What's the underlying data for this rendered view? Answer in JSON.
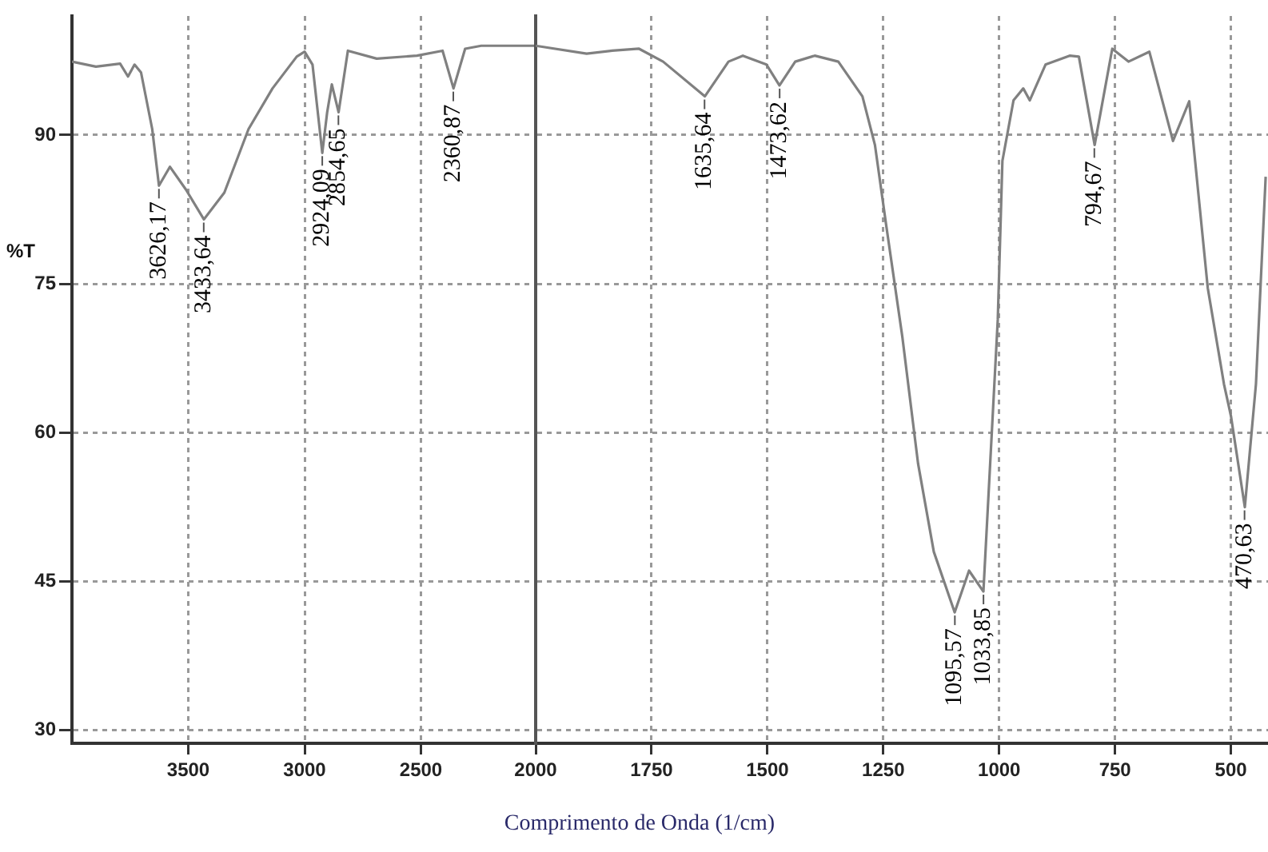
{
  "chart_data": [
    {
      "type": "line",
      "ylabel": "%T",
      "xlim": [
        4000,
        2000
      ],
      "xticks": [
        3500,
        3000,
        2500
      ],
      "ylim": [
        28.7,
        102
      ],
      "yticks": [
        30,
        45,
        60,
        75,
        90
      ],
      "grid": true,
      "marker": "none",
      "line_style": "solid",
      "series": [
        {
          "color": "#808080",
          "x": [
            4000,
            3897,
            3793,
            3759,
            3731,
            3703,
            3655,
            3626,
            3579,
            3510,
            3433,
            3345,
            3241,
            3138,
            3034,
            3000,
            2966,
            2924,
            2903,
            2883,
            2854,
            2814,
            2690,
            2517,
            2407,
            2360,
            2310,
            2241,
            2000
          ],
          "values": [
            97.4,
            96.9,
            97.2,
            95.9,
            97.1,
            96.3,
            90.6,
            84.9,
            86.8,
            84.5,
            81.5,
            84.2,
            90.6,
            94.7,
            97.9,
            98.4,
            97.1,
            88.2,
            92.3,
            95.1,
            92.3,
            98.5,
            97.7,
            98.0,
            98.5,
            94.7,
            98.7,
            99.0,
            99.0
          ]
        }
      ],
      "annotations": [
        {
          "text": "3626,17",
          "x": 3626.17,
          "y": 84.9
        },
        {
          "text": "3433,64",
          "x": 3433.64,
          "y": 81.5
        },
        {
          "text": "2924,09",
          "x": 2924.09,
          "y": 88.2
        },
        {
          "text": "2854,65",
          "x": 2854.65,
          "y": 92.3
        },
        {
          "text": "2360,87",
          "x": 2360.87,
          "y": 94.7
        }
      ]
    },
    {
      "type": "line",
      "xlabel": "Comprimento de Onda (1/cm)",
      "xlim": [
        2000,
        420
      ],
      "xticks": [
        2000,
        1750,
        1500,
        1250,
        1000,
        750,
        500
      ],
      "ylim": [
        28.7,
        102
      ],
      "yticks": [
        30,
        45,
        60,
        75,
        90
      ],
      "tick_labels": "x",
      "grid": true,
      "marker": "none",
      "line_style": "solid",
      "series": [
        {
          "color": "#808080",
          "x": [
            2000,
            1890,
            1835,
            1777,
            1725,
            1635,
            1584,
            1553,
            1502,
            1474,
            1440,
            1398,
            1347,
            1295,
            1268,
            1244,
            1209,
            1175,
            1141,
            1096,
            1065,
            1034,
            1003,
            993,
            969,
            948,
            934,
            900,
            848,
            828,
            794,
            756,
            721,
            676,
            625,
            590,
            550,
            515,
            500,
            470,
            446,
            425
          ],
          "values": [
            99.0,
            98.2,
            98.5,
            98.7,
            97.4,
            93.9,
            97.4,
            98.0,
            97.1,
            95.0,
            97.4,
            98.0,
            97.4,
            93.9,
            89.0,
            81.0,
            69.7,
            56.9,
            48.0,
            41.9,
            46.1,
            44.0,
            71.4,
            87.4,
            93.5,
            94.7,
            93.5,
            97.1,
            98.0,
            97.9,
            89.0,
            98.7,
            97.4,
            98.4,
            89.4,
            93.4,
            74.6,
            64.9,
            61.7,
            52.5,
            64.9,
            85.8
          ]
        }
      ],
      "annotations": [
        {
          "text": "1635,64",
          "x": 1635.64,
          "y": 93.9
        },
        {
          "text": "1473,62",
          "x": 1473.62,
          "y": 95.0
        },
        {
          "text": "1095,57",
          "x": 1095.57,
          "y": 41.9
        },
        {
          "text": "1033,85",
          "x": 1033.85,
          "y": 44.0
        },
        {
          "text": "794,67",
          "x": 794.67,
          "y": 89.0
        },
        {
          "text": "470,63",
          "x": 470.63,
          "y": 52.5
        }
      ]
    }
  ]
}
